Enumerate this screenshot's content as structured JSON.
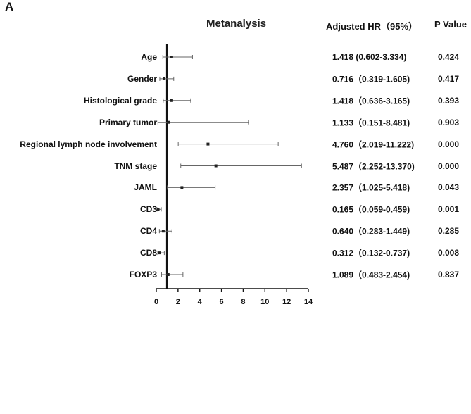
{
  "panel_label": "A",
  "chart_data": {
    "type": "forest",
    "title": "Metanalysis",
    "columns": {
      "hr": "Adjusted HR（95%）",
      "p": "P Value"
    },
    "xlim": [
      0,
      14
    ],
    "xticks": [
      0,
      2,
      4,
      6,
      8,
      10,
      12,
      14
    ],
    "reference_line": 1,
    "rows": [
      {
        "label": "Age",
        "hr": 1.418,
        "lo": 0.602,
        "hi": 3.334,
        "hr_text": "1.418 (0.602-3.334)",
        "p": "0.424"
      },
      {
        "label": "Gender",
        "hr": 0.716,
        "lo": 0.319,
        "hi": 1.605,
        "hr_text": "0.716（0.319-1.605)",
        "p": "0.417"
      },
      {
        "label": "Histological grade",
        "hr": 1.418,
        "lo": 0.636,
        "hi": 3.165,
        "hr_text": "1.418（0.636-3.165)",
        "p": "0.393"
      },
      {
        "label": "Primary tumor",
        "hr": 1.133,
        "lo": 0.151,
        "hi": 8.481,
        "hr_text": "1.133（0.151-8.481)",
        "p": "0.903"
      },
      {
        "label": "Regional lymph node involvement",
        "hr": 4.76,
        "lo": 2.019,
        "hi": 11.222,
        "hr_text": "4.760（2.019-11.222)",
        "p": "0.000"
      },
      {
        "label": "TNM stage",
        "hr": 5.487,
        "lo": 2.252,
        "hi": 13.37,
        "hr_text": "5.487（2.252-13.370)",
        "p": "0.000"
      },
      {
        "label": "JAML",
        "hr": 2.357,
        "lo": 1.025,
        "hi": 5.418,
        "hr_text": "2.357（1.025-5.418)",
        "p": "0.043"
      },
      {
        "label": "CD3",
        "hr": 0.165,
        "lo": 0.059,
        "hi": 0.459,
        "hr_text": "0.165（0.059-0.459)",
        "p": "0.001"
      },
      {
        "label": "CD4",
        "hr": 0.64,
        "lo": 0.283,
        "hi": 1.449,
        "hr_text": "0.640（0.283-1.449)",
        "p": "0.285"
      },
      {
        "label": "CD8",
        "hr": 0.312,
        "lo": 0.132,
        "hi": 0.737,
        "hr_text": "0.312（0.132-0.737)",
        "p": "0.008"
      },
      {
        "label": "FOXP3",
        "hr": 1.089,
        "lo": 0.483,
        "hi": 2.454,
        "hr_text": "1.089（0.483-2.454)",
        "p": "0.837"
      }
    ]
  }
}
